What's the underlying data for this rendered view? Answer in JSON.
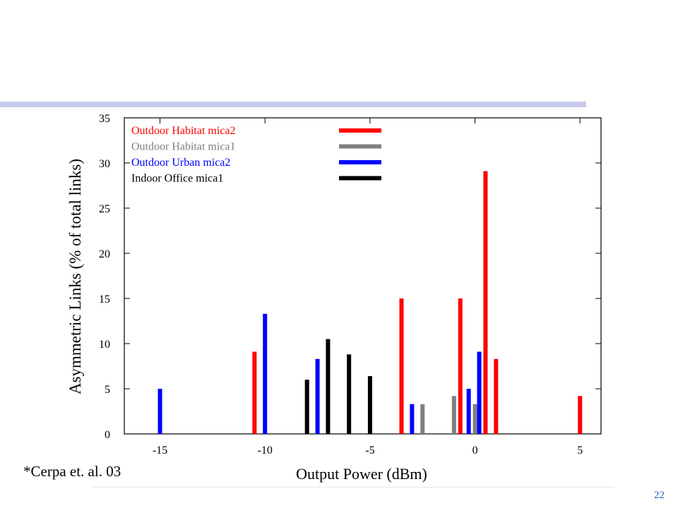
{
  "slide": {
    "citation": "*Cerpa et. al. 03",
    "page_number": "22",
    "accent_bar_color": "#c7c9ef"
  },
  "chart_data": {
    "type": "bar",
    "title": "",
    "xlabel": "Output Power (dBm)",
    "ylabel": "Asymmetric Links (% of total links)",
    "xlim": [
      -16.7,
      6.0
    ],
    "ylim": [
      0,
      35
    ],
    "xticks": [
      -15,
      -10,
      -5,
      0,
      5
    ],
    "yticks": [
      0,
      5,
      10,
      15,
      20,
      25,
      30,
      35
    ],
    "legend_position": "top-left",
    "grid": false,
    "series": [
      {
        "name": "Outdoor Habitat mica2",
        "color": "#ff0000",
        "points": [
          {
            "x": -10.5,
            "y": 9.1
          },
          {
            "x": -3.5,
            "y": 15.0
          },
          {
            "x": -0.7,
            "y": 15.0
          },
          {
            "x": 0.5,
            "y": 29.1
          },
          {
            "x": 1.0,
            "y": 8.3
          },
          {
            "x": 5.0,
            "y": 4.2
          }
        ]
      },
      {
        "name": "Outdoor Habitat mica1",
        "color": "#808080",
        "points": [
          {
            "x": -2.5,
            "y": 3.3
          },
          {
            "x": -1.0,
            "y": 4.2
          },
          {
            "x": 0.0,
            "y": 3.3
          }
        ]
      },
      {
        "name": "Outdoor Urban mica2",
        "color": "#0000ff",
        "points": [
          {
            "x": -15.0,
            "y": 5.0
          },
          {
            "x": -10.0,
            "y": 13.3
          },
          {
            "x": -7.5,
            "y": 8.3
          },
          {
            "x": -3.0,
            "y": 3.3
          },
          {
            "x": -0.3,
            "y": 5.0
          },
          {
            "x": 0.2,
            "y": 9.1
          }
        ]
      },
      {
        "name": "Indoor Office mica1",
        "color": "#000000",
        "points": [
          {
            "x": -8.0,
            "y": 6.0
          },
          {
            "x": -7.0,
            "y": 10.5
          },
          {
            "x": -6.0,
            "y": 8.8
          },
          {
            "x": -5.0,
            "y": 6.4
          }
        ]
      }
    ]
  }
}
